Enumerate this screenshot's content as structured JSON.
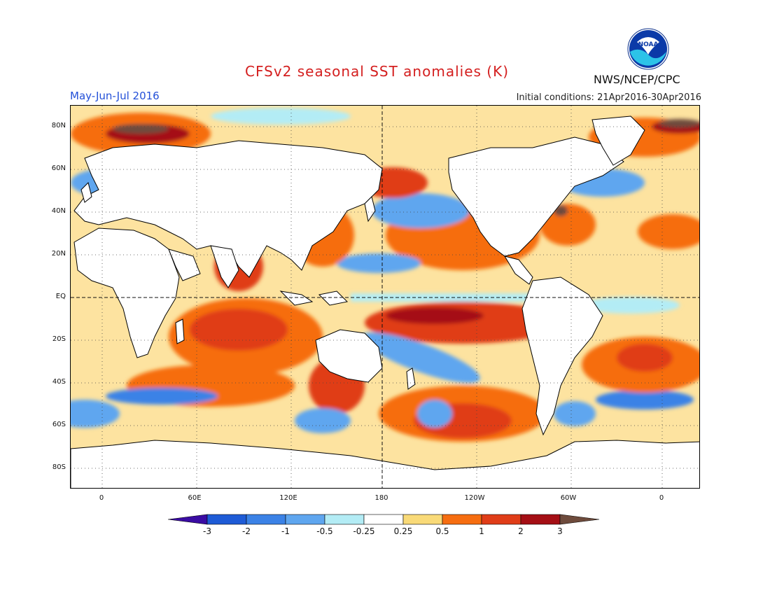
{
  "title": "CFSv2 seasonal SST anomalies (K)",
  "period": "May-Jun-Jul 2016",
  "initial_conditions": "Initial conditions: 21Apr2016-30Apr2016",
  "org": "NWS/NCEP/CPC",
  "logo_text": "NOAA",
  "lat_labels": [
    "80N",
    "60N",
    "40N",
    "20N",
    "EQ",
    "20S",
    "40S",
    "60S",
    "80S"
  ],
  "lon_labels": [
    "0",
    "60E",
    "120E",
    "180",
    "120W",
    "60W",
    "0"
  ],
  "colorbar": {
    "labels": [
      "-3",
      "-2",
      "-1",
      "-0.5",
      "-0.25",
      "0.25",
      "0.5",
      "1",
      "2",
      "3"
    ],
    "colors": [
      "#3a0ca3",
      "#1e5bd6",
      "#3b82e6",
      "#5fa6ef",
      "#b3ecf5",
      "#ffffff",
      "#f9da78",
      "#f66d10",
      "#e03d18",
      "#a50f15",
      "#6e4b3c"
    ]
  },
  "colors": {
    "title": "#d41f1f",
    "period": "#2350d8",
    "land": "#ffffff",
    "coast": "#000000"
  }
}
